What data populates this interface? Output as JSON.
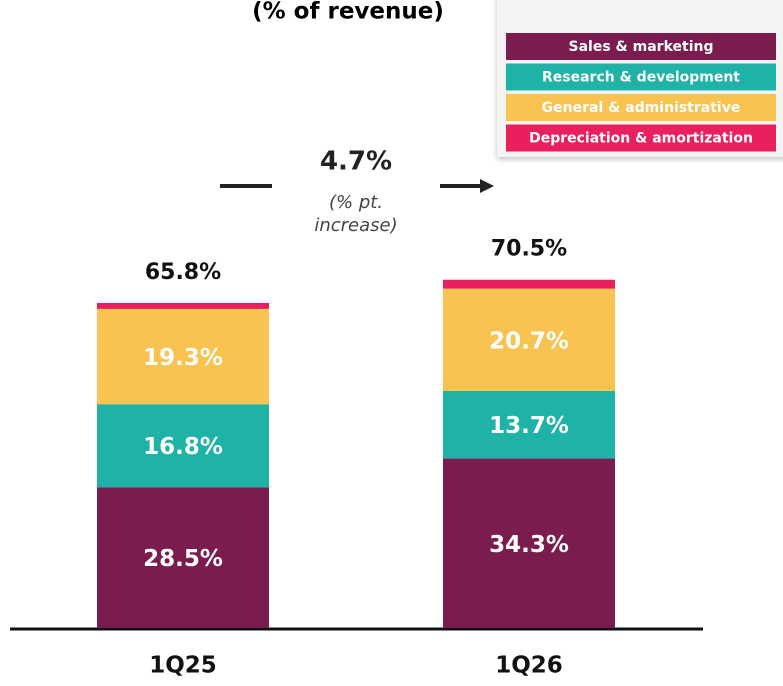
{
  "chart_data": {
    "type": "stacked-bar",
    "title": "(% of revenue)",
    "categories": [
      "1Q25",
      "1Q26"
    ],
    "series": [
      {
        "name": "Sales & marketing",
        "color": "#7b1c4f",
        "values": [
          28.5,
          34.3
        ],
        "value_labels": [
          "28.5%",
          "34.3%"
        ]
      },
      {
        "name": "Research & development",
        "color": "#1eb3a6",
        "values": [
          16.8,
          13.7
        ],
        "value_labels": [
          "16.8%",
          "13.7%"
        ]
      },
      {
        "name": "General & administrative",
        "color": "#f9c352",
        "values": [
          19.3,
          20.7
        ],
        "value_labels": [
          "19.3%",
          "20.7%"
        ]
      },
      {
        "name": "Depreciation & amortization",
        "color": "#e8215e",
        "values": [
          1.2,
          1.8
        ]
      }
    ],
    "totals": [
      65.8,
      70.5
    ],
    "total_labels": [
      "65.8%",
      "70.5%"
    ],
    "annotation": "4.7%",
    "annotation_note": [
      "(% pt.",
      "increase)"
    ],
    "legend": "top-right"
  }
}
